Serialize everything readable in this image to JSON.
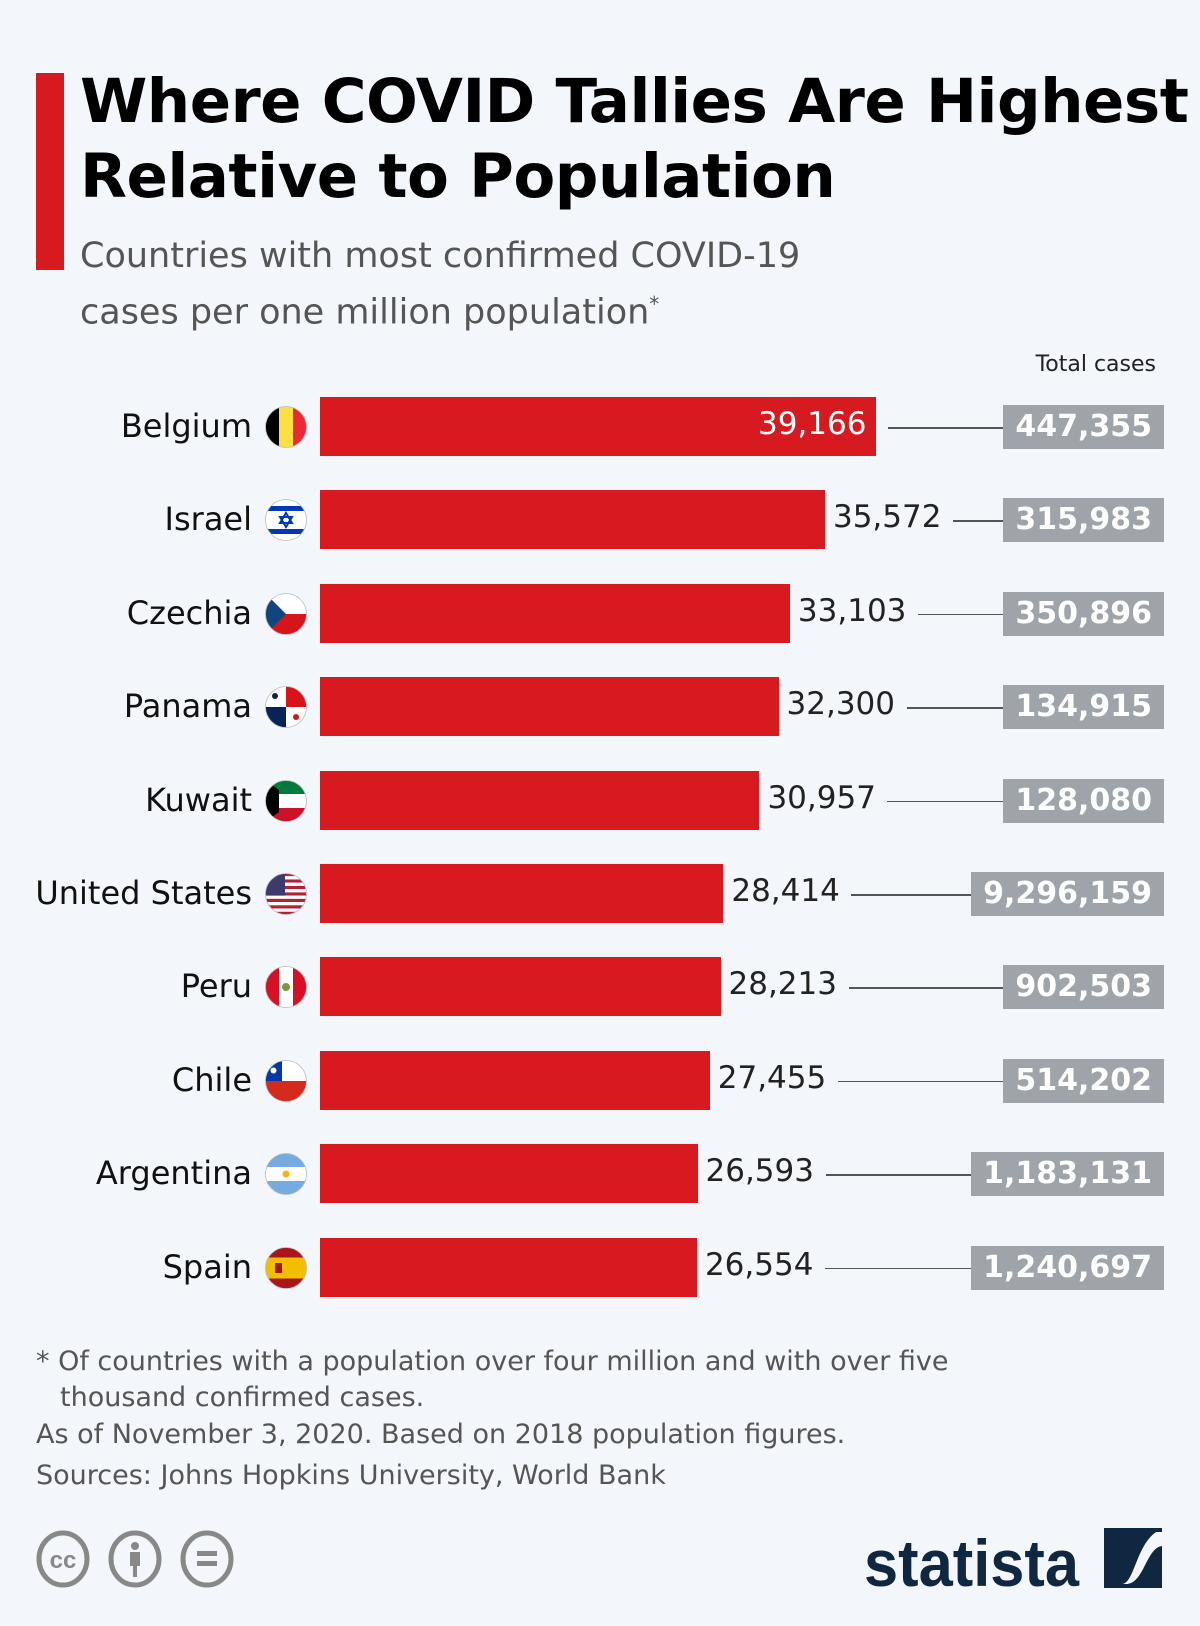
{
  "chart_data": {
    "type": "bar",
    "orientation": "horizontal",
    "title": "Where COVID Tallies Are Highest Relative to Population",
    "subtitle": "Countries with most confirmed COVID-19 cases per one million population",
    "subtitle_marker": "*",
    "total_header": "Total cases",
    "categories": [
      "Belgium",
      "Israel",
      "Czechia",
      "Panama",
      "Kuwait",
      "United States",
      "Peru",
      "Chile",
      "Argentina",
      "Spain"
    ],
    "flags": [
      "be",
      "il",
      "cz",
      "pa",
      "kw",
      "us",
      "pe",
      "cl",
      "ar",
      "es"
    ],
    "values": [
      39166,
      35572,
      33103,
      32300,
      30957,
      28414,
      28213,
      27455,
      26593,
      26554
    ],
    "value_labels": [
      "39,166",
      "35,572",
      "33,103",
      "32,300",
      "30,957",
      "28,414",
      "28,213",
      "27,455",
      "26,593",
      "26,554"
    ],
    "total_cases": [
      "447,355",
      "315,983",
      "350,896",
      "134,915",
      "128,080",
      "9,296,159",
      "902,503",
      "514,202",
      "1,183,131",
      "1,240,697"
    ],
    "bar_color": "#d71920",
    "box_color": "#9ea4aa",
    "grid": false
  },
  "footer": {
    "note_line1": "* Of countries with a population over four million and with over five",
    "note_line2": "thousand confirmed cases.",
    "asof": "As of November 3, 2020. Based on 2018 population figures.",
    "sources": "Sources: Johns Hopkins University, World Bank",
    "logo": "statista",
    "license_icons": [
      "cc-icon",
      "by-icon",
      "nd-icon"
    ]
  }
}
